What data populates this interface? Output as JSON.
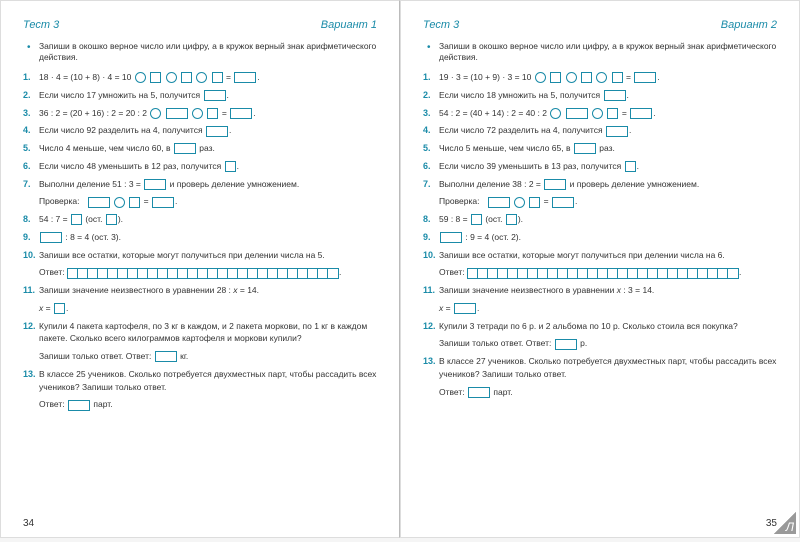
{
  "left": {
    "test": "Тест 3",
    "variant": "Вариант 1",
    "instruction": "Запиши в окошко верное число или цифру, а в кружок верный знак арифметического действия.",
    "p1_prefix": "18 · 4 = (10 + 8) · 4 = 10",
    "p2": "Если число 17 умножить на 5, получится",
    "p3_a": "36 : 2 = (20 + 16) : 2 = 20 : 2",
    "p3_b": "=",
    "p4": "Если число 92 разделить на 4, получится",
    "p5_a": "Число 4 меньше, чем число 60, в",
    "p5_b": "раз.",
    "p6": "Если число 48 уменьшить в 12 раз, получится",
    "p7_a": "Выполни деление 51 : 3 =",
    "p7_b": "и проверь деление умножением.",
    "p7_check": "Проверка:",
    "p8_a": "54 : 7 =",
    "p8_b": "(ост.",
    "p8_c": ").",
    "p9_a": ": 8 = 4 (ост. 3).",
    "p10_a": "Запиши все остатки, которые могут получиться при делении числа на 5.",
    "p10_ans": "Ответ:",
    "p11_a": "Запиши значение неизвестного в уравнении 28 : ",
    "p11_x": "x",
    "p11_b": " = 14.",
    "p11_c": " =",
    "p12_a": "Купили 4 пакета картофеля, по 3 кг в каждом, и 2 пакета моркови, по 1 кг в каждом пакете. Сколько всего килограммов картофеля и моркови купили?",
    "p12_b": "Запиши только ответ.    Ответ:",
    "p12_c": "кг.",
    "p13_a": "В классе 25 учеников. Сколько потребуется двухместных парт, чтобы рассадить всех учеников? Запиши только ответ.",
    "p13_b": "Ответ:",
    "p13_c": "парт.",
    "pagenum": "34"
  },
  "right": {
    "test": "Тест 3",
    "variant": "Вариант 2",
    "instruction": "Запиши в окошко верное число или цифру, а в кружок верный знак арифметического действия.",
    "p1_prefix": "19 · 3 = (10 + 9) · 3 = 10",
    "p2": "Если число 18 умножить на 5, получится",
    "p3_a": "54 : 2 = (40 + 14) : 2 = 40 : 2",
    "p3_b": "=",
    "p4": "Если число 72 разделить на 4, получится",
    "p5_a": "Число 5 меньше, чем число 65, в",
    "p5_b": "раз.",
    "p6": "Если число 39 уменьшить в 13 раз, получится",
    "p7_a": "Выполни деление 38 : 2 =",
    "p7_b": "и проверь деление умножением.",
    "p7_check": "Проверка:",
    "p8_a": "59 : 8 =",
    "p8_b": "(ост.",
    "p8_c": ").",
    "p9_a": ": 9 = 4 (ост. 2).",
    "p10_a": "Запиши все остатки, которые могут получиться при делении числа на 6.",
    "p10_ans": "Ответ:",
    "p11_a": "Запиши значение неизвестного в уравнении ",
    "p11_x": "x",
    "p11_b": " : 3 = 14.",
    "p11_c": " =",
    "p12_a": "Купили 3 тетради по 6 р. и 2 альбома по 10 р. Сколько стоила вся покупка?",
    "p12_b": "Запиши только ответ.    Ответ:",
    "p12_c": "р.",
    "p13_a": "В классе 27 учеников. Сколько потребуется двухместных парт, чтобы рассадить всех учеников? Запиши только ответ.",
    "p13_b": "Ответ:",
    "p13_c": "парт.",
    "pagenum": "35"
  }
}
